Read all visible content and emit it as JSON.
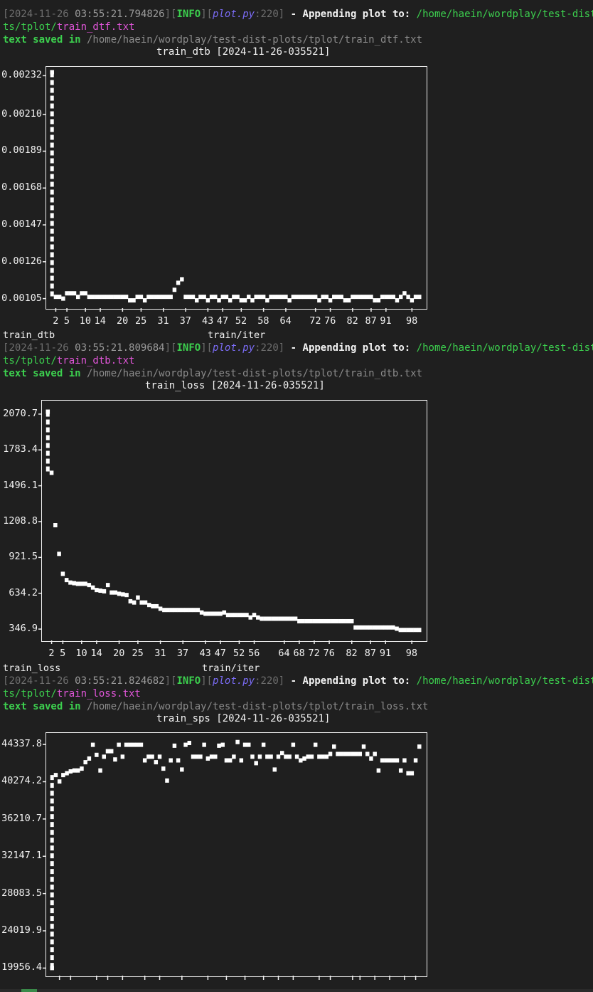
{
  "logs": [
    {
      "bracket_open": "[",
      "date": "2024-11-26",
      "time": "03:55:21.794826",
      "bracket_mid": "][",
      "level": "INFO",
      "bracket_mid2": "][",
      "file": "plot.py",
      "colon": ":",
      "line": "220",
      "bracket_close": "]",
      "message": " - Appending plot to: ",
      "path_a": "/home/haein/wordplay/test-dist-plo",
      "path_b_dir": "ts/tplot/",
      "path_b_file": "train_dtf.txt",
      "saved_kw": "text saved in",
      "saved_path": " /home/haein/wordplay/test-dist-plots/tplot/train_dtf.txt"
    },
    {
      "bracket_open": "[",
      "date": "2024-11-26",
      "time": "03:55:21.809684",
      "bracket_mid": "][",
      "level": "INFO",
      "bracket_mid2": "][",
      "file": "plot.py",
      "colon": ":",
      "line": "220",
      "bracket_close": "]",
      "message": " - Appending plot to: ",
      "path_a": "/home/haein/wordplay/test-dist-plo",
      "path_b_dir": "ts/tplot/",
      "path_b_file": "train_dtb.txt",
      "saved_kw": "text saved in",
      "saved_path": " /home/haein/wordplay/test-dist-plots/tplot/train_dtb.txt"
    },
    {
      "bracket_open": "[",
      "date": "2024-11-26",
      "time": "03:55:21.824682",
      "bracket_mid": "][",
      "level": "INFO",
      "bracket_mid2": "][",
      "file": "plot.py",
      "colon": ":",
      "line": "220",
      "bracket_close": "]",
      "message": " - Appending plot to: ",
      "path_a": "/home/haein/wordplay/test-dist-plo",
      "path_b_dir": "ts/tplot/",
      "path_b_file": "train_loss.txt",
      "saved_kw": "text saved in",
      "saved_path": " /home/haein/wordplay/test-dist-plots/tplot/train_loss.txt"
    }
  ],
  "chart_data": [
    {
      "type": "scatter",
      "title": "train_dtb [2024-11-26-035521]",
      "ylabel": "train_dtb",
      "xlabel": "train/iter",
      "yticks": [
        "0.00232",
        "0.00210",
        "0.00189",
        "0.00168",
        "0.00147",
        "0.00126",
        "0.00105"
      ],
      "ytick_values": [
        0.00232,
        0.0021,
        0.00189,
        0.00168,
        0.00147,
        0.00126,
        0.00105
      ],
      "xticks": [
        "2",
        "5",
        "10",
        "14",
        "20",
        "25",
        "31",
        "37",
        "43",
        "47",
        "52",
        "58",
        "64",
        "72",
        "76",
        "82",
        "87",
        "91",
        "98"
      ],
      "xtick_values": [
        2,
        5,
        10,
        14,
        20,
        25,
        31,
        37,
        43,
        47,
        52,
        58,
        64,
        72,
        76,
        82,
        87,
        91,
        98
      ],
      "xlim": [
        0,
        101
      ],
      "ylim": [
        0.00102,
        0.00235
      ],
      "x": [
        1,
        2,
        3,
        4,
        5,
        6,
        7,
        8,
        9,
        10,
        11,
        12,
        13,
        14,
        15,
        16,
        17,
        18,
        19,
        20,
        21,
        22,
        23,
        24,
        25,
        26,
        27,
        28,
        29,
        30,
        31,
        32,
        33,
        34,
        35,
        36,
        37,
        38,
        39,
        40,
        41,
        42,
        43,
        44,
        45,
        46,
        47,
        48,
        49,
        50,
        51,
        52,
        53,
        54,
        55,
        56,
        57,
        58,
        59,
        60,
        61,
        62,
        63,
        64,
        65,
        66,
        67,
        68,
        69,
        70,
        71,
        72,
        73,
        74,
        75,
        76,
        77,
        78,
        79,
        80,
        81,
        82,
        83,
        84,
        85,
        86,
        87,
        88,
        89,
        90,
        91,
        92,
        93,
        94,
        95,
        96,
        97,
        98,
        99,
        100
      ],
      "y": [
        0.00234,
        0.00106,
        0.00106,
        0.00105,
        0.00108,
        0.00108,
        0.00108,
        0.00106,
        0.00108,
        0.00108,
        0.00106,
        0.00106,
        0.00106,
        0.00106,
        0.00106,
        0.00106,
        0.00106,
        0.00106,
        0.00106,
        0.00106,
        0.00106,
        0.00104,
        0.00104,
        0.00106,
        0.00106,
        0.00104,
        0.00106,
        0.00106,
        0.00106,
        0.00106,
        0.00106,
        0.00106,
        0.00106,
        0.0011,
        0.00114,
        0.00116,
        0.00106,
        0.00106,
        0.00106,
        0.00104,
        0.00106,
        0.00106,
        0.00104,
        0.00106,
        0.00106,
        0.00104,
        0.00106,
        0.00106,
        0.00104,
        0.00106,
        0.00106,
        0.00104,
        0.00104,
        0.00106,
        0.00104,
        0.00106,
        0.00106,
        0.00106,
        0.00104,
        0.00106,
        0.00106,
        0.00106,
        0.00106,
        0.00106,
        0.00104,
        0.00106,
        0.00106,
        0.00106,
        0.00106,
        0.00106,
        0.00106,
        0.00106,
        0.00104,
        0.00106,
        0.00106,
        0.00104,
        0.00106,
        0.00106,
        0.00106,
        0.00104,
        0.00104,
        0.00106,
        0.00106,
        0.00106,
        0.00106,
        0.00106,
        0.00106,
        0.00104,
        0.00104,
        0.00106,
        0.00106,
        0.00106,
        0.00106,
        0.00104,
        0.00106,
        0.00108,
        0.00106,
        0.00104,
        0.00106,
        0.00106
      ]
    },
    {
      "type": "scatter",
      "title": "train_loss [2024-11-26-035521]",
      "ylabel": "train_loss",
      "xlabel": "train/iter",
      "yticks": [
        "2070.7",
        "1783.4",
        "1496.1",
        "1208.8",
        "921.5",
        "634.2",
        "346.9"
      ],
      "ytick_values": [
        2070.7,
        1783.4,
        1496.1,
        1208.8,
        921.5,
        634.2,
        346.9
      ],
      "xticks": [
        "2",
        "5",
        "10",
        "14",
        "20",
        "25",
        "31",
        "37",
        "43",
        "47",
        "52",
        "56",
        "64",
        "68",
        "72",
        "76",
        "82",
        "87",
        "91",
        "98"
      ],
      "xtick_values": [
        2,
        5,
        10,
        14,
        20,
        25,
        31,
        37,
        43,
        47,
        52,
        56,
        64,
        68,
        72,
        76,
        82,
        87,
        91,
        98
      ],
      "xlim": [
        0,
        101
      ],
      "ylim": [
        290,
        2150
      ],
      "x": [
        1,
        2,
        3,
        4,
        5,
        6,
        7,
        8,
        9,
        10,
        11,
        12,
        13,
        14,
        15,
        16,
        17,
        18,
        19,
        20,
        21,
        22,
        23,
        24,
        25,
        26,
        27,
        28,
        29,
        30,
        31,
        32,
        33,
        34,
        35,
        36,
        37,
        38,
        39,
        40,
        41,
        42,
        43,
        44,
        45,
        46,
        47,
        48,
        49,
        50,
        51,
        52,
        53,
        54,
        55,
        56,
        57,
        58,
        59,
        60,
        61,
        62,
        63,
        64,
        65,
        66,
        67,
        68,
        69,
        70,
        71,
        72,
        73,
        74,
        75,
        76,
        77,
        78,
        79,
        80,
        81,
        82,
        83,
        84,
        85,
        86,
        87,
        88,
        89,
        90,
        91,
        92,
        93,
        94,
        95,
        96,
        97,
        98,
        99,
        100
      ],
      "y": [
        2090,
        1600,
        1180,
        950,
        790,
        740,
        720,
        715,
        710,
        710,
        710,
        700,
        680,
        660,
        655,
        650,
        700,
        640,
        640,
        630,
        625,
        620,
        570,
        560,
        600,
        560,
        560,
        540,
        530,
        530,
        510,
        500,
        500,
        500,
        500,
        500,
        500,
        500,
        500,
        500,
        500,
        480,
        470,
        470,
        470,
        470,
        470,
        480,
        460,
        460,
        460,
        460,
        460,
        460,
        440,
        460,
        440,
        430,
        430,
        430,
        430,
        430,
        430,
        430,
        430,
        430,
        430,
        410,
        410,
        410,
        410,
        410,
        410,
        410,
        410,
        410,
        410,
        410,
        410,
        410,
        410,
        410,
        360,
        360,
        360,
        360,
        360,
        360,
        360,
        360,
        360,
        360,
        360,
        350,
        340,
        340,
        340,
        340,
        340,
        340
      ]
    },
    {
      "type": "scatter",
      "title": "train_sps [2024-11-26-035521]",
      "ylabel": "",
      "xlabel": "",
      "yticks": [
        "44337.8",
        "40274.2",
        "36210.7",
        "32147.1",
        "28083.5",
        "24019.9",
        "19956.4"
      ],
      "ytick_values": [
        44337.8,
        40274.2,
        36210.7,
        32147.1,
        28083.5,
        24019.9,
        19956.4
      ],
      "xticks": [],
      "xlim": [
        0,
        101
      ],
      "ylim": [
        19600,
        45200
      ],
      "x": [
        1,
        2,
        3,
        4,
        5,
        6,
        7,
        8,
        9,
        10,
        11,
        12,
        13,
        14,
        15,
        16,
        17,
        18,
        19,
        20,
        21,
        22,
        23,
        24,
        25,
        26,
        27,
        28,
        29,
        30,
        31,
        32,
        33,
        34,
        35,
        36,
        37,
        38,
        39,
        40,
        41,
        42,
        43,
        44,
        45,
        46,
        47,
        48,
        49,
        50,
        51,
        52,
        53,
        54,
        55,
        56,
        57,
        58,
        59,
        60,
        61,
        62,
        63,
        64,
        65,
        66,
        67,
        68,
        69,
        70,
        71,
        72,
        73,
        74,
        75,
        76,
        77,
        78,
        79,
        80,
        81,
        82,
        83,
        84,
        85,
        86,
        87,
        88,
        89,
        90,
        91,
        92,
        93,
        94,
        95,
        96,
        97,
        98,
        99,
        100
      ],
      "y": [
        19960,
        41000,
        40300,
        41000,
        41200,
        41400,
        41500,
        41500,
        41700,
        42400,
        42800,
        44300,
        43200,
        41500,
        43000,
        43600,
        43600,
        42700,
        44300,
        43000,
        44300,
        44300,
        44300,
        44300,
        44300,
        42600,
        43000,
        43000,
        42400,
        43000,
        41700,
        40400,
        42600,
        44200,
        42600,
        41600,
        44300,
        44500,
        43000,
        43000,
        43000,
        44300,
        42800,
        43000,
        43000,
        44200,
        44300,
        42600,
        42600,
        43000,
        44600,
        42600,
        44300,
        44300,
        43000,
        42300,
        43000,
        44300,
        43000,
        43000,
        41600,
        43000,
        43400,
        43000,
        43000,
        44300,
        43000,
        42600,
        42800,
        43000,
        43000,
        44300,
        43000,
        43000,
        43000,
        43300,
        44100,
        43300,
        43300,
        43300,
        43300,
        43300,
        43300,
        43300,
        44100,
        43300,
        42800,
        43300,
        41500,
        42600,
        42600,
        42600,
        42600,
        42600,
        41500,
        42600,
        41200,
        41200,
        42600,
        44100
      ]
    }
  ]
}
